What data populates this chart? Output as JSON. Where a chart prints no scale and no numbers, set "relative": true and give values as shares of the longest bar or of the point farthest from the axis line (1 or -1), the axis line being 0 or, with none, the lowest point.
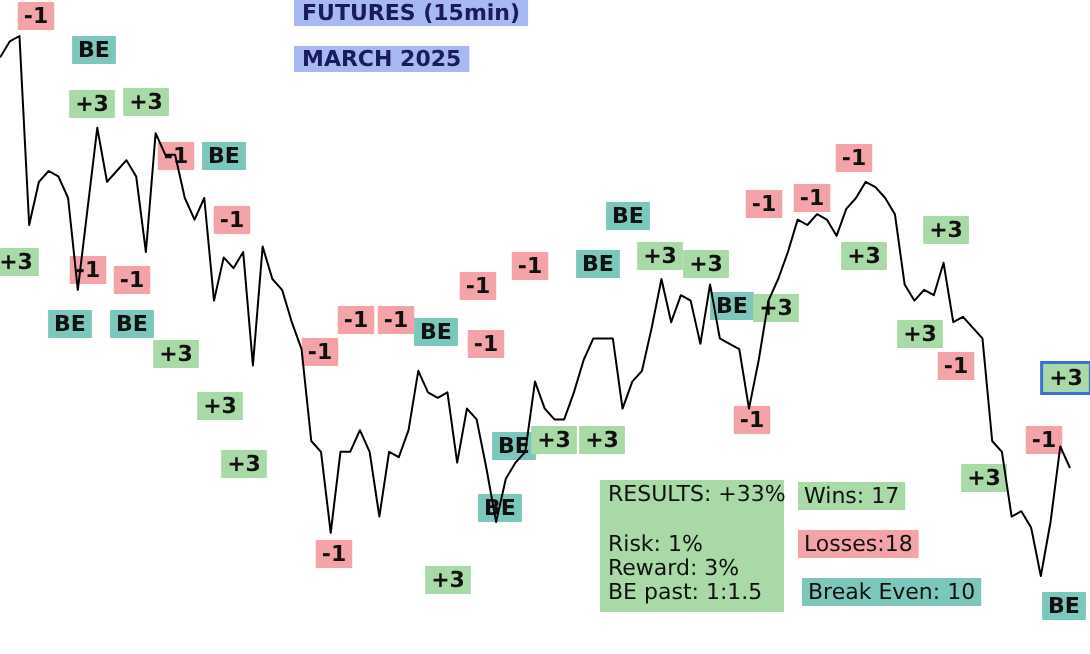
{
  "chart_data": {
    "type": "line",
    "relative": true,
    "title": "FUTURES (15min)",
    "subtitle": "MARCH 2025",
    "categories": [
      null,
      null,
      null,
      null,
      null,
      null,
      null,
      null,
      null,
      null,
      null,
      null,
      null,
      null,
      null,
      null,
      null,
      null,
      null,
      null,
      null,
      null,
      null,
      null,
      null,
      null,
      null,
      null,
      null,
      null,
      null,
      null,
      null,
      null,
      null,
      null,
      null,
      null,
      null,
      null,
      null,
      null,
      null,
      null,
      null,
      null,
      null,
      null,
      null,
      null,
      null,
      null,
      null,
      null,
      null,
      null,
      null,
      null,
      null,
      null,
      null,
      null,
      null,
      null,
      null,
      null,
      null,
      null,
      null,
      null,
      null,
      null,
      null,
      null,
      null,
      null,
      null,
      null,
      null,
      null,
      null,
      null,
      null,
      null,
      null,
      null,
      null,
      null,
      null,
      null,
      null,
      null,
      null,
      null,
      null,
      null,
      null,
      null,
      null,
      null,
      null,
      null,
      null,
      null,
      null,
      null,
      null,
      null,
      null,
      null,
      null
    ],
    "series": [
      {
        "color": "#000000",
        "values": [
          0.96,
          0.99,
          1,
          0.65,
          0.73,
          0.75,
          0.74,
          0.7,
          0.53,
          0.68,
          0.83,
          0.73,
          0.75,
          0.77,
          0.74,
          0.6,
          0.82,
          0.78,
          0.78,
          0.7,
          0.66,
          0.7,
          0.51,
          0.59,
          0.57,
          0.6,
          0.39,
          0.61,
          0.55,
          0.53,
          0.47,
          0.42,
          0.25,
          0.23,
          0.08,
          0.23,
          0.23,
          0.27,
          0.23,
          0.11,
          0.23,
          0.22,
          0.27,
          0.38,
          0.34,
          0.33,
          0.34,
          0.21,
          0.31,
          0.29,
          0.2,
          0.1,
          0.18,
          0.21,
          0.23,
          0.36,
          0.31,
          0.29,
          0.29,
          0.34,
          0.4,
          0.44,
          0.44,
          0.44,
          0.31,
          0.36,
          0.38,
          0.46,
          0.55,
          0.47,
          0.52,
          0.51,
          0.43,
          0.54,
          0.44,
          0.43,
          0.42,
          0.31,
          0.4,
          0.51,
          0.55,
          0.6,
          0.66,
          0.65,
          0.67,
          0.66,
          0.63,
          0.68,
          0.7,
          0.73,
          0.72,
          0.7,
          0.67,
          0.54,
          0.51,
          0.53,
          0.52,
          0.58,
          0.47,
          0.48,
          0.46,
          0.44,
          0.25,
          0.23,
          0.11,
          0.12,
          0.09,
          0,
          0.1,
          0.24,
          0.2
        ]
      }
    ],
    "line_style": "solid",
    "annotations": [
      "-1",
      "BE",
      "+3",
      "+3",
      "-1",
      "BE",
      "-1",
      "+3",
      "-1",
      "-1",
      "BE",
      "BE",
      "+3",
      "+3",
      "+3",
      "-1",
      "-1",
      "-1",
      "BE",
      "-1",
      "-1",
      "-1",
      "BE",
      "+3",
      "+3",
      "BE",
      "-1",
      "+3",
      "BE",
      "BE",
      "+3",
      "+3",
      "BE",
      "+3",
      "-1",
      "-1",
      "-1",
      "+3",
      "+3",
      "+3",
      "-1",
      "-1",
      "+3",
      "-1",
      "+3",
      "BE",
      "RESULTS: +33%",
      "Risk: 1%",
      "Reward: 3%",
      "BE past: 1:1.5",
      "Wins: 17",
      "Losses:18",
      "Break Even: 10"
    ]
  }
}
